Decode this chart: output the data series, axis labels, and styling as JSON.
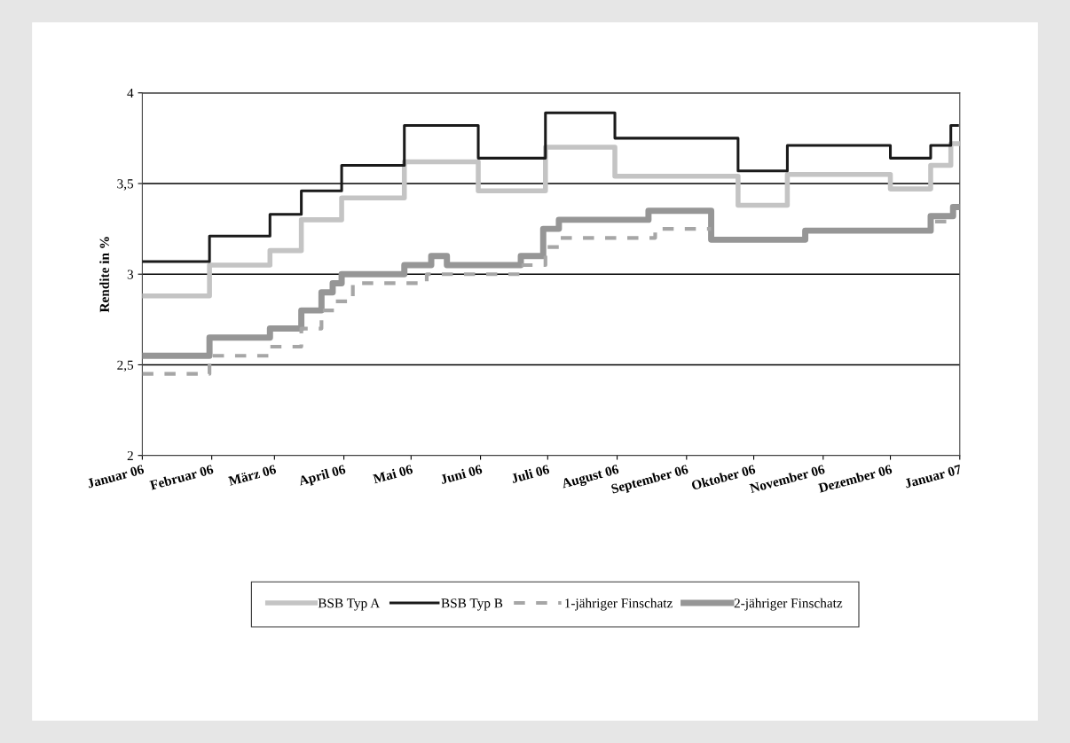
{
  "chart_data": {
    "type": "step",
    "ylabel": "Rendite in %",
    "xlim": [
      "2006-01-01",
      "2007-01-01"
    ],
    "xticks": [
      {
        "value": "2006-01-01",
        "label": "Januar 06"
      },
      {
        "value": "2006-02-01",
        "label": "Februar 06"
      },
      {
        "value": "2006-03-01",
        "label": "März 06"
      },
      {
        "value": "2006-04-01",
        "label": "April 06"
      },
      {
        "value": "2006-05-01",
        "label": "Mai 06"
      },
      {
        "value": "2006-06-01",
        "label": "Juni 06"
      },
      {
        "value": "2006-07-01",
        "label": "Juli 06"
      },
      {
        "value": "2006-08-01",
        "label": "August 06"
      },
      {
        "value": "2006-09-01",
        "label": "September 06"
      },
      {
        "value": "2006-10-01",
        "label": "Oktober 06"
      },
      {
        "value": "2006-11-01",
        "label": "November 06"
      },
      {
        "value": "2006-12-01",
        "label": "Dezember 06"
      },
      {
        "value": "2007-01-01",
        "label": "Januar 07"
      }
    ],
    "ylim": [
      2,
      4
    ],
    "yticks": [
      {
        "value": 2,
        "label": "2"
      },
      {
        "value": 2.5,
        "label": "2,5"
      },
      {
        "value": 3,
        "label": "3"
      },
      {
        "value": 3.5,
        "label": "3,5"
      },
      {
        "value": 4,
        "label": "4"
      }
    ],
    "grid": "y",
    "legend": "bottom",
    "series": [
      {
        "name": "BSB Typ A",
        "color": "#c4c4c4",
        "line_style": "solid",
        "x": [
          "2006-01-01",
          "2006-01-31",
          "2006-02-27",
          "2006-03-13",
          "2006-03-31",
          "2006-04-28",
          "2006-05-31",
          "2006-06-30",
          "2006-07-31",
          "2006-09-24",
          "2006-10-16",
          "2006-12-01",
          "2006-12-19",
          "2006-12-28",
          "2006-12-31"
        ],
        "values": [
          2.88,
          3.05,
          3.13,
          3.3,
          3.42,
          3.62,
          3.46,
          3.7,
          3.54,
          3.38,
          3.55,
          3.47,
          3.6,
          3.72,
          3.72
        ]
      },
      {
        "name": "BSB Typ B",
        "color": "#1a1a1a",
        "line_style": "solid",
        "x": [
          "2006-01-01",
          "2006-01-31",
          "2006-02-27",
          "2006-03-13",
          "2006-03-31",
          "2006-04-28",
          "2006-05-31",
          "2006-06-30",
          "2006-07-31",
          "2006-09-24",
          "2006-10-16",
          "2006-12-01",
          "2006-12-19",
          "2006-12-28",
          "2006-12-31"
        ],
        "values": [
          3.07,
          3.21,
          3.33,
          3.46,
          3.6,
          3.82,
          3.64,
          3.89,
          3.75,
          3.57,
          3.71,
          3.64,
          3.71,
          3.82,
          3.82
        ]
      },
      {
        "name": "1-jähriger Finschatz",
        "color": "#a6a6a6",
        "line_style": "dashed",
        "x": [
          "2006-01-01",
          "2006-01-31",
          "2006-02-27",
          "2006-03-13",
          "2006-03-22",
          "2006-03-28",
          "2006-04-05",
          "2006-05-08",
          "2006-06-19",
          "2006-06-30",
          "2006-07-06",
          "2006-08-18",
          "2006-09-12",
          "2006-12-21",
          "2006-12-29"
        ],
        "values": [
          2.45,
          2.55,
          2.6,
          2.7,
          2.8,
          2.85,
          2.95,
          3.0,
          3.05,
          3.15,
          3.2,
          3.25,
          null,
          3.29,
          3.29
        ]
      },
      {
        "name": "2-jähriger Finschatz",
        "color": "#969696",
        "line_style": "solid",
        "x": [
          "2006-01-01",
          "2006-01-31",
          "2006-02-27",
          "2006-03-13",
          "2006-03-22",
          "2006-03-27",
          "2006-03-31",
          "2006-04-28",
          "2006-05-10",
          "2006-05-17",
          "2006-06-19",
          "2006-06-29",
          "2006-07-06",
          "2006-08-15",
          "2006-09-12",
          "2006-10-24",
          "2006-12-19",
          "2006-12-29",
          "2006-12-31"
        ],
        "values": [
          2.55,
          2.65,
          2.7,
          2.8,
          2.9,
          2.95,
          3.0,
          3.05,
          3.1,
          3.05,
          3.1,
          3.25,
          3.3,
          3.35,
          3.19,
          3.24,
          3.32,
          3.37,
          3.37
        ]
      }
    ]
  }
}
